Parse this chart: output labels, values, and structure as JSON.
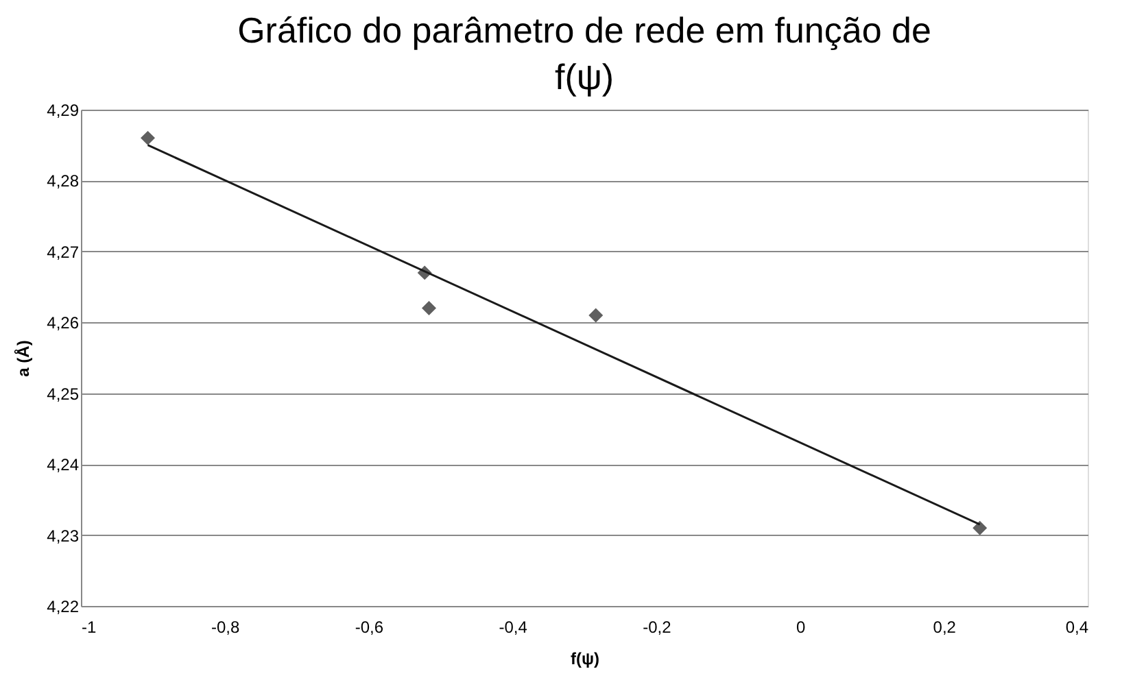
{
  "chart_data": {
    "type": "scatter",
    "title": "Gráfico do parâmetro de rede em função de f(ψ)",
    "xlabel": "f(ψ)",
    "ylabel": "a (Å)",
    "xlim": [
      -1,
      0.4
    ],
    "xticks": [
      {
        "value": -1,
        "label": "-1"
      },
      {
        "value": -0.8,
        "label": "-0,8"
      },
      {
        "value": -0.6,
        "label": "-0,6"
      },
      {
        "value": -0.4,
        "label": "-0,4"
      },
      {
        "value": -0.2,
        "label": "-0,2"
      },
      {
        "value": 0,
        "label": "0"
      },
      {
        "value": 0.2,
        "label": "0,2"
      },
      {
        "value": 0.4,
        "label": "0,4"
      }
    ],
    "ylim": [
      4.22,
      4.29
    ],
    "yticks": [
      {
        "value": 4.22,
        "label": "4,22"
      },
      {
        "value": 4.23,
        "label": "4,23"
      },
      {
        "value": 4.24,
        "label": "4,24"
      },
      {
        "value": 4.25,
        "label": "4,25"
      },
      {
        "value": 4.26,
        "label": "4,26"
      },
      {
        "value": 4.27,
        "label": "4,27"
      },
      {
        "value": 4.28,
        "label": "4,28"
      },
      {
        "value": 4.29,
        "label": "4,29"
      }
    ],
    "grid": "y",
    "series": [
      {
        "marker": "diamond",
        "color": "#5f5f5f",
        "x": [
          -0.907,
          -0.522,
          -0.516,
          -0.284,
          0.25
        ],
        "values": [
          4.286,
          4.267,
          4.262,
          4.261,
          4.231
        ]
      },
      {
        "type": "line",
        "marker": "none",
        "color": "#1a1a1a",
        "x": [
          -0.907,
          0.25
        ],
        "values": [
          4.285,
          4.2315
        ]
      }
    ]
  }
}
